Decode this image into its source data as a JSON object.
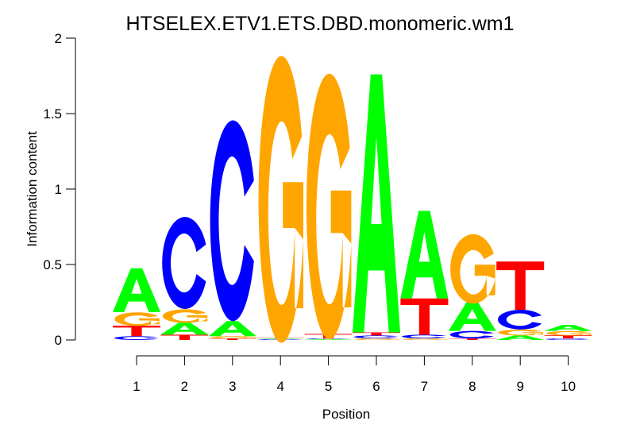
{
  "chart_data": {
    "type": "sequence-logo",
    "title": "HTSELEX.ETV1.ETS.DBD.monomeric.wm1",
    "xlabel": "Position",
    "ylabel": "Information content",
    "ylim": [
      0,
      2
    ],
    "yticks": [
      "0",
      "0.5",
      "1",
      "1.5",
      "2"
    ],
    "ytick_values": [
      0,
      0.5,
      1,
      1.5,
      2
    ],
    "positions": [
      "1",
      "2",
      "3",
      "4",
      "5",
      "6",
      "7",
      "8",
      "9",
      "10"
    ],
    "colors": {
      "A": "#00ff00",
      "C": "#0000ff",
      "G": "#ffa500",
      "T": "#ff0000"
    },
    "stacks": [
      [
        [
          "C",
          0.025
        ],
        [
          "T",
          0.07
        ],
        [
          "G",
          0.09
        ],
        [
          "A",
          0.29
        ]
      ],
      [
        [
          "T",
          0.035
        ],
        [
          "A",
          0.08
        ],
        [
          "G",
          0.09
        ],
        [
          "C",
          0.61
        ]
      ],
      [
        [
          "T",
          0.01
        ],
        [
          "G",
          0.015
        ],
        [
          "A",
          0.1
        ],
        [
          "C",
          1.33
        ]
      ],
      [
        [
          "C",
          0.005
        ],
        [
          "A",
          0.005
        ],
        [
          "T",
          0.01
        ],
        [
          "G",
          1.9
        ]
      ],
      [
        [
          "A",
          0.005
        ],
        [
          "C",
          0.005
        ],
        [
          "T",
          0.03
        ],
        [
          "G",
          1.76
        ]
      ],
      [
        [
          "G",
          0.01
        ],
        [
          "C",
          0.02
        ],
        [
          "T",
          0.02
        ],
        [
          "A",
          1.71
        ]
      ],
      [
        [
          "G",
          0.01
        ],
        [
          "C",
          0.025
        ],
        [
          "T",
          0.24
        ],
        [
          "A",
          0.58
        ]
      ],
      [
        [
          "T",
          0.01
        ],
        [
          "C",
          0.05
        ],
        [
          "A",
          0.19
        ],
        [
          "G",
          0.46
        ]
      ],
      [
        [
          "A",
          0.03
        ],
        [
          "G",
          0.04
        ],
        [
          "C",
          0.13
        ],
        [
          "T",
          0.32
        ]
      ],
      [
        [
          "C",
          0.01
        ],
        [
          "T",
          0.02
        ],
        [
          "G",
          0.03
        ],
        [
          "A",
          0.04
        ]
      ]
    ]
  }
}
